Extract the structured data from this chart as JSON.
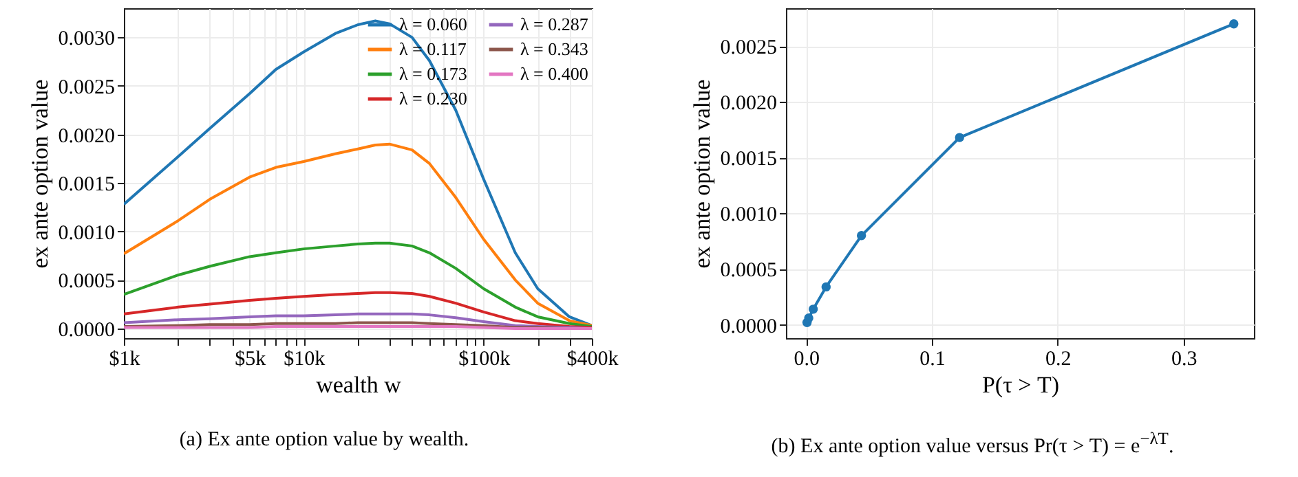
{
  "chart_data": [
    {
      "type": "line",
      "xlabel": "wealth w",
      "ylabel": "ex ante option value",
      "annotations": [
        "(a) Ex ante option value by wealth."
      ],
      "x": [
        1000,
        2000,
        3000,
        5000,
        7000,
        10000,
        15000,
        20000,
        25000,
        30000,
        40000,
        50000,
        70000,
        100000,
        150000,
        200000,
        300000,
        400000
      ],
      "series": [
        {
          "name": "λ = 0.060",
          "color": "#1f77b4",
          "values": [
            0.00128,
            0.00177,
            0.00206,
            0.00242,
            0.00267,
            0.00285,
            0.00304,
            0.00313,
            0.00317,
            0.00314,
            0.003,
            0.00276,
            0.00225,
            0.00154,
            0.00078,
            0.00041,
            0.00012,
            3e-05
          ]
        },
        {
          "name": "λ = 0.117",
          "color": "#ff7f0e",
          "values": [
            0.00077,
            0.00111,
            0.00133,
            0.00156,
            0.00166,
            0.00172,
            0.0018,
            0.00185,
            0.00189,
            0.0019,
            0.00184,
            0.0017,
            0.00135,
            0.00092,
            0.0005,
            0.00026,
            8e-05,
            3e-05
          ]
        },
        {
          "name": "λ = 0.173",
          "color": "#2ca02c",
          "values": [
            0.00035,
            0.00055,
            0.00064,
            0.00074,
            0.00078,
            0.00082,
            0.00085,
            0.00087,
            0.00088,
            0.00088,
            0.00085,
            0.00078,
            0.00062,
            0.00041,
            0.00022,
            0.00012,
            5e-05,
            2e-05
          ]
        },
        {
          "name": "λ = 0.230",
          "color": "#d62728",
          "values": [
            0.00015,
            0.00022,
            0.00025,
            0.00029,
            0.00031,
            0.00033,
            0.00035,
            0.00036,
            0.00037,
            0.00037,
            0.00036,
            0.00033,
            0.00026,
            0.00017,
            8e-05,
            5e-05,
            2e-05,
            1e-05
          ]
        },
        {
          "name": "λ = 0.287",
          "color": "#9467bd",
          "values": [
            6e-05,
            9e-05,
            0.0001,
            0.00012,
            0.00013,
            0.00013,
            0.00014,
            0.00015,
            0.00015,
            0.00015,
            0.00015,
            0.00014,
            0.00011,
            7e-05,
            3e-05,
            2e-05,
            1e-05,
            0
          ]
        },
        {
          "name": "λ = 0.343",
          "color": "#8c564b",
          "values": [
            2e-05,
            3e-05,
            4e-05,
            4e-05,
            5e-05,
            5e-05,
            5e-05,
            6e-05,
            6e-05,
            6e-05,
            6e-05,
            5e-05,
            4e-05,
            3e-05,
            1e-05,
            1e-05,
            0,
            0
          ]
        },
        {
          "name": "λ = 0.400",
          "color": "#e377c2",
          "values": [
            1e-05,
            1e-05,
            1e-05,
            1e-05,
            2e-05,
            2e-05,
            2e-05,
            2e-05,
            2e-05,
            2e-05,
            2e-05,
            2e-05,
            2e-05,
            1e-05,
            0,
            0,
            0,
            0
          ]
        }
      ],
      "log": "x",
      "xlim": [
        1000,
        400000
      ],
      "xticks": [
        {
          "value": 1000,
          "label": "$1k"
        },
        {
          "value": 2000,
          "label": null
        },
        {
          "value": 3000,
          "label": null
        },
        {
          "value": 4000,
          "label": null
        },
        {
          "value": 5000,
          "label": "$5k"
        },
        {
          "value": 6000,
          "label": null
        },
        {
          "value": 7000,
          "label": null
        },
        {
          "value": 8000,
          "label": null
        },
        {
          "value": 9000,
          "label": null
        },
        {
          "value": 10000,
          "label": "$10k"
        },
        {
          "value": 20000,
          "label": null
        },
        {
          "value": 30000,
          "label": null
        },
        {
          "value": 40000,
          "label": null
        },
        {
          "value": 50000,
          "label": null
        },
        {
          "value": 60000,
          "label": null
        },
        {
          "value": 70000,
          "label": null
        },
        {
          "value": 80000,
          "label": null
        },
        {
          "value": 90000,
          "label": null
        },
        {
          "value": 100000,
          "label": "$100k"
        },
        {
          "value": 200000,
          "label": null
        },
        {
          "value": 300000,
          "label": null
        },
        {
          "value": 400000,
          "label": "$400k"
        }
      ],
      "ylim": [
        -0.0001,
        0.0033
      ],
      "yticks": [
        {
          "value": 0,
          "label": "0.0000"
        },
        {
          "value": 0.0005,
          "label": "0.0005"
        },
        {
          "value": 0.001,
          "label": "0.0010"
        },
        {
          "value": 0.0015,
          "label": "0.0015"
        },
        {
          "value": 0.002,
          "label": "0.0020"
        },
        {
          "value": 0.0025,
          "label": "0.0025"
        },
        {
          "value": 0.003,
          "label": "0.0030"
        }
      ],
      "grid": true,
      "legend": "top right"
    },
    {
      "type": "line",
      "xlabel": "P(τ > T)",
      "ylabel": "ex ante option value",
      "annotations": [
        "(b) Ex ante option value versus Pr(τ > T) = e$^{−λT}$."
      ],
      "x": [
        0.00075,
        0.0021,
        0.0057,
        0.0159,
        0.044,
        0.122,
        0.34
      ],
      "series": [
        {
          "color": "#1f77b4",
          "values": [
            2e-05,
            6e-05,
            0.00014,
            0.00034,
            0.0008,
            0.00168,
            0.0027
          ]
        }
      ],
      "marker": "circle",
      "xlim": [
        -0.016,
        0.356
      ],
      "xticks": [
        {
          "value": 0,
          "label": "0.0"
        },
        0.1,
        0.2,
        0.3
      ],
      "ylim": [
        -0.00012,
        0.00284
      ],
      "yticks": [
        {
          "value": 0,
          "label": "0.0000"
        },
        {
          "value": 0.0005,
          "label": "0.0005"
        },
        {
          "value": 0.001,
          "label": "0.0010"
        },
        {
          "value": 0.0015,
          "label": "0.0015"
        },
        {
          "value": 0.002,
          "label": "0.0020"
        },
        {
          "value": 0.0025,
          "label": "0.0025"
        }
      ],
      "grid": true
    }
  ]
}
